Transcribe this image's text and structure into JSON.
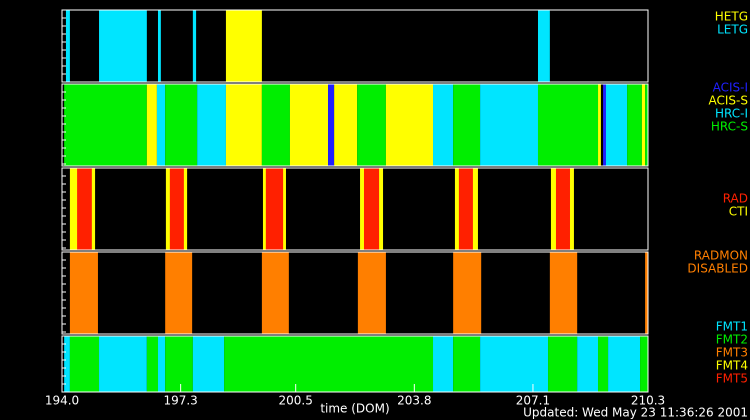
{
  "chart_data": {
    "type": "timeline",
    "xlabel": "time (DOM)",
    "footer": "Updated: Wed May 23 11:36:26 2001",
    "xlim": [
      194.0,
      210.3
    ],
    "xticks": [
      {
        "value": 194.0,
        "label": "194.0"
      },
      {
        "value": 197.3,
        "label": "197.3"
      },
      {
        "value": 200.5,
        "label": "200.5"
      },
      {
        "value": 203.8,
        "label": "203.8"
      },
      {
        "value": 207.1,
        "label": "207.1"
      },
      {
        "value": 210.3,
        "label": "210.3"
      }
    ],
    "panels": [
      {
        "legend": [
          {
            "name": "HETG",
            "color": "#ffff00"
          },
          {
            "name": "LETG",
            "color": "#00e5ff"
          }
        ],
        "segments": [
          {
            "start": 194.11,
            "end": 194.22,
            "color": "#00e5ff"
          },
          {
            "start": 195.03,
            "end": 196.36,
            "color": "#00e5ff"
          },
          {
            "start": 196.67,
            "end": 196.75,
            "color": "#00e5ff"
          },
          {
            "start": 197.64,
            "end": 197.73,
            "color": "#00e5ff"
          },
          {
            "start": 198.56,
            "end": 199.56,
            "color": "#ffff00"
          },
          {
            "start": 207.24,
            "end": 207.57,
            "color": "#00e5ff"
          }
        ]
      },
      {
        "legend": [
          {
            "name": "ACIS-I",
            "color": "#2020ff"
          },
          {
            "name": "ACIS-S",
            "color": "#ffff00"
          },
          {
            "name": "HRC-I",
            "color": "#00e5ff"
          },
          {
            "name": "HRC-S",
            "color": "#00ee00"
          }
        ],
        "segments": [
          {
            "start": 194.06,
            "end": 196.36,
            "color": "#00ee00"
          },
          {
            "start": 196.36,
            "end": 196.64,
            "color": "#ffff00"
          },
          {
            "start": 196.64,
            "end": 196.87,
            "color": "#00e5ff"
          },
          {
            "start": 196.87,
            "end": 197.76,
            "color": "#00ee00"
          },
          {
            "start": 197.76,
            "end": 198.56,
            "color": "#00e5ff"
          },
          {
            "start": 198.56,
            "end": 199.56,
            "color": "#ffff00"
          },
          {
            "start": 199.56,
            "end": 200.34,
            "color": "#00ee00"
          },
          {
            "start": 200.34,
            "end": 201.4,
            "color": "#ffff00"
          },
          {
            "start": 201.4,
            "end": 201.57,
            "color": "#2020ff"
          },
          {
            "start": 201.57,
            "end": 202.21,
            "color": "#ffff00"
          },
          {
            "start": 202.21,
            "end": 203.01,
            "color": "#00ee00"
          },
          {
            "start": 203.01,
            "end": 204.32,
            "color": "#ffff00"
          },
          {
            "start": 204.32,
            "end": 204.88,
            "color": "#00e5ff"
          },
          {
            "start": 204.88,
            "end": 205.63,
            "color": "#00ee00"
          },
          {
            "start": 205.63,
            "end": 207.24,
            "color": "#00e5ff"
          },
          {
            "start": 207.24,
            "end": 208.91,
            "color": "#00ee00"
          },
          {
            "start": 208.91,
            "end": 208.99,
            "color": "#ffff00"
          },
          {
            "start": 209.05,
            "end": 209.13,
            "color": "#2020ff"
          },
          {
            "start": 209.13,
            "end": 209.72,
            "color": "#00e5ff"
          },
          {
            "start": 209.72,
            "end": 210.13,
            "color": "#00ee00"
          },
          {
            "start": 210.13,
            "end": 210.22,
            "color": "#ffff00"
          },
          {
            "start": 210.22,
            "end": 210.3,
            "color": "#00ee00"
          }
        ]
      },
      {
        "legend": [
          {
            "name": "RAD",
            "color": "#ff2000"
          },
          {
            "name": "CTI",
            "color": "#ffff00"
          }
        ],
        "segments": [
          {
            "start": 194.22,
            "end": 194.92,
            "color": "#ffff00"
          },
          {
            "start": 194.42,
            "end": 194.83,
            "color": "#ff2000"
          },
          {
            "start": 196.89,
            "end": 197.48,
            "color": "#ffff00"
          },
          {
            "start": 197.0,
            "end": 197.39,
            "color": "#ff2000"
          },
          {
            "start": 199.59,
            "end": 200.23,
            "color": "#ffff00"
          },
          {
            "start": 199.67,
            "end": 200.15,
            "color": "#ff2000"
          },
          {
            "start": 202.29,
            "end": 202.93,
            "color": "#ffff00"
          },
          {
            "start": 202.4,
            "end": 202.82,
            "color": "#ff2000"
          },
          {
            "start": 204.93,
            "end": 205.57,
            "color": "#ffff00"
          },
          {
            "start": 205.04,
            "end": 205.43,
            "color": "#ff2000"
          },
          {
            "start": 207.6,
            "end": 208.24,
            "color": "#ffff00"
          },
          {
            "start": 207.74,
            "end": 208.13,
            "color": "#ff2000"
          }
        ]
      },
      {
        "legend": [
          {
            "name": "RADMON",
            "color": "#ff7f00"
          },
          {
            "name": "DISABLED",
            "color": "#ff7f00"
          }
        ],
        "segments": [
          {
            "start": 194.22,
            "end": 195.0,
            "color": "#ff7f00"
          },
          {
            "start": 196.87,
            "end": 197.62,
            "color": "#ff7f00"
          },
          {
            "start": 199.56,
            "end": 200.31,
            "color": "#ff7f00"
          },
          {
            "start": 202.23,
            "end": 203.01,
            "color": "#ff7f00"
          },
          {
            "start": 204.88,
            "end": 205.66,
            "color": "#ff7f00"
          },
          {
            "start": 207.57,
            "end": 208.33,
            "color": "#ff7f00"
          },
          {
            "start": 210.22,
            "end": 210.3,
            "color": "#ff7f00"
          }
        ]
      },
      {
        "legend": [
          {
            "name": "FMT1",
            "color": "#00e5ff"
          },
          {
            "name": "FMT2",
            "color": "#00ee00"
          },
          {
            "name": "FMT3",
            "color": "#ff7f00"
          },
          {
            "name": "FMT4",
            "color": "#ffff00"
          },
          {
            "name": "FMT5",
            "color": "#ff2000"
          }
        ],
        "segments": [
          {
            "start": 194.06,
            "end": 194.22,
            "color": "#00e5ff"
          },
          {
            "start": 194.22,
            "end": 195.03,
            "color": "#00ee00"
          },
          {
            "start": 195.03,
            "end": 196.36,
            "color": "#00e5ff"
          },
          {
            "start": 196.36,
            "end": 196.67,
            "color": "#00ee00"
          },
          {
            "start": 196.67,
            "end": 196.87,
            "color": "#00e5ff"
          },
          {
            "start": 196.87,
            "end": 197.64,
            "color": "#00ee00"
          },
          {
            "start": 197.64,
            "end": 198.51,
            "color": "#00e5ff"
          },
          {
            "start": 198.51,
            "end": 204.32,
            "color": "#00ee00"
          },
          {
            "start": 204.32,
            "end": 204.88,
            "color": "#00e5ff"
          },
          {
            "start": 204.88,
            "end": 205.63,
            "color": "#00ee00"
          },
          {
            "start": 205.63,
            "end": 207.52,
            "color": "#00e5ff"
          },
          {
            "start": 207.52,
            "end": 208.33,
            "color": "#00ee00"
          },
          {
            "start": 208.33,
            "end": 208.91,
            "color": "#00e5ff"
          },
          {
            "start": 208.91,
            "end": 209.19,
            "color": "#00ee00"
          },
          {
            "start": 209.19,
            "end": 210.08,
            "color": "#00e5ff"
          },
          {
            "start": 210.08,
            "end": 210.3,
            "color": "#00ee00"
          }
        ]
      }
    ]
  }
}
